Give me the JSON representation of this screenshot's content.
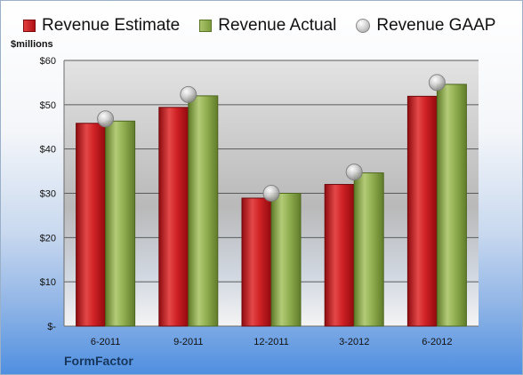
{
  "chart_data": {
    "type": "bar",
    "ylabel": "$millions",
    "categories": [
      "6-2011",
      "9-2011",
      "12-2011",
      "3-2012",
      "6-2012"
    ],
    "series": [
      {
        "name": "Revenue Estimate",
        "kind": "bar",
        "color": "#c41b1f",
        "values": [
          45.8,
          49.4,
          28.9,
          32.0,
          51.9
        ]
      },
      {
        "name": "Revenue Actual",
        "kind": "bar",
        "color": "#8fae4c",
        "values": [
          46.3,
          52.0,
          30.0,
          34.6,
          54.6
        ]
      },
      {
        "name": "Revenue GAAP",
        "kind": "marker",
        "color": "#b8b8b8",
        "values": [
          46.8,
          52.3,
          30.0,
          34.8,
          55.0
        ]
      }
    ],
    "ylim": [
      0,
      60
    ],
    "yticks": [
      0,
      10,
      20,
      30,
      40,
      50,
      60
    ],
    "ytick_labels": [
      "$-",
      "$10",
      "$20",
      "$30",
      "$40",
      "$50",
      "$60"
    ],
    "grid": true,
    "legend_position": "top"
  },
  "legend": {
    "estimate": "Revenue Estimate",
    "actual": "Revenue Actual",
    "gaap": "Revenue GAAP"
  },
  "unit_label": "$millions",
  "company": "FormFactor"
}
